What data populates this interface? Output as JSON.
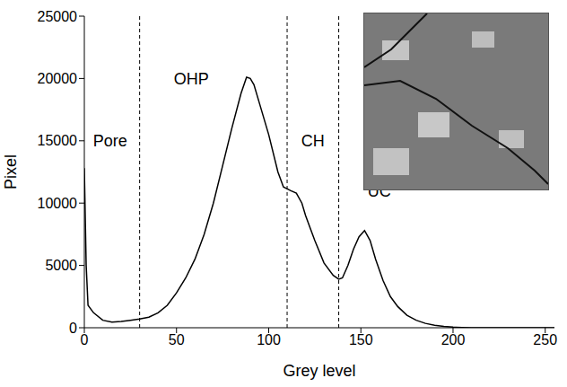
{
  "chart_data": {
    "type": "line",
    "x_label": "Grey level",
    "y_label": "Pixel",
    "x": [
      0,
      1,
      2,
      5,
      10,
      15,
      20,
      25,
      30,
      35,
      40,
      45,
      50,
      55,
      60,
      65,
      70,
      75,
      80,
      85,
      88,
      90,
      92,
      95,
      100,
      105,
      108,
      112,
      115,
      118,
      120,
      125,
      130,
      135,
      138,
      140,
      143,
      146,
      149,
      152,
      155,
      158,
      162,
      166,
      170,
      175,
      180,
      185,
      190,
      195,
      200,
      205,
      210,
      220,
      240,
      255
    ],
    "values": [
      12800,
      5000,
      1800,
      1200,
      600,
      450,
      500,
      600,
      700,
      850,
      1200,
      1800,
      2800,
      4000,
      5500,
      7500,
      10000,
      13000,
      16000,
      18800,
      20100,
      20000,
      19500,
      18000,
      15500,
      12500,
      11300,
      11000,
      10800,
      10000,
      9000,
      7000,
      5200,
      4200,
      3900,
      4000,
      5000,
      6300,
      7300,
      7800,
      7000,
      5500,
      3800,
      2500,
      1700,
      1000,
      600,
      350,
      200,
      100,
      50,
      20,
      0,
      0,
      0,
      0
    ],
    "color": "#000000",
    "xlim": [
      0,
      255
    ],
    "xticks": [
      0,
      50,
      100,
      150,
      200,
      250
    ],
    "ylim": [
      0,
      25000
    ],
    "yticks": [
      0,
      5000,
      10000,
      15000,
      20000,
      25000
    ],
    "grid": false,
    "dividers": [
      30,
      110,
      138
    ],
    "annotations": [
      {
        "text": "Pore",
        "x": 14,
        "y": 15000
      },
      {
        "text": "OHP",
        "x": 58,
        "y": 20000
      },
      {
        "text": "CH",
        "x": 124,
        "y": 15000
      },
      {
        "text": "UC",
        "x": 160,
        "y": 11000
      }
    ]
  }
}
